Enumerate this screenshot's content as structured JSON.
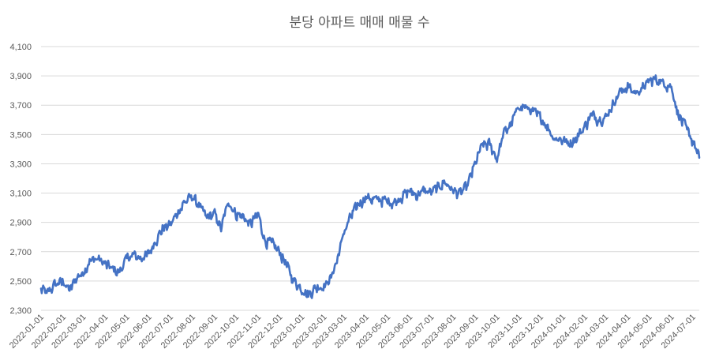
{
  "chart_data": {
    "type": "line",
    "title": "분당 아파트 매매 매물 수",
    "xlabel": "",
    "ylabel": "",
    "ylim": [
      2300,
      4100
    ],
    "yticks": [
      "2,300",
      "2,500",
      "2,700",
      "2,900",
      "3,100",
      "3,300",
      "3,500",
      "3,700",
      "3,900",
      "4,100"
    ],
    "ytick_values": [
      2300,
      2500,
      2700,
      2900,
      3100,
      3300,
      3500,
      3700,
      3900,
      4100
    ],
    "xticks": [
      "2022-01-01",
      "2022-02-01",
      "2022-03-01",
      "2022-04-01",
      "2022-05-01",
      "2022-06-01",
      "2022-07-01",
      "2022-08-01",
      "2022-09-01",
      "2022-10-01",
      "2022-11-01",
      "2022-12-01",
      "2023-01-01",
      "2023-02-01",
      "2023-03-01",
      "2023-04-01",
      "2023-05-01",
      "2023-06-01",
      "2023-07-01",
      "2023-08-01",
      "2023-09-01",
      "2023-10-01",
      "2023-11-01",
      "2023-12-01",
      "2024-01-01",
      "2024-02-01",
      "2024-03-01",
      "2024-04-01",
      "2024-05-01",
      "2024-06-01",
      "2024-07-01"
    ],
    "xrange": [
      "2022-01-01",
      "2024-07-10"
    ],
    "grid": true,
    "legend": "none",
    "color": "#4472c4",
    "series": [
      {
        "x": [
          "2022-01-01",
          "2022-01-10",
          "2022-01-20",
          "2022-02-01",
          "2022-02-10",
          "2022-02-20",
          "2022-03-01",
          "2022-03-10",
          "2022-03-20",
          "2022-04-01",
          "2022-04-10",
          "2022-04-20",
          "2022-05-01",
          "2022-05-10",
          "2022-05-20",
          "2022-06-01",
          "2022-06-10",
          "2022-06-20",
          "2022-07-01",
          "2022-07-10",
          "2022-07-20",
          "2022-08-01",
          "2022-08-10",
          "2022-08-20",
          "2022-09-01",
          "2022-09-10",
          "2022-09-20",
          "2022-10-01",
          "2022-10-10",
          "2022-10-20",
          "2022-11-01",
          "2022-11-10",
          "2022-11-20",
          "2022-12-01",
          "2022-12-10",
          "2022-12-20",
          "2023-01-01",
          "2023-01-10",
          "2023-01-20",
          "2023-02-01",
          "2023-02-10",
          "2023-02-20",
          "2023-03-01",
          "2023-03-10",
          "2023-03-20",
          "2023-04-01",
          "2023-04-10",
          "2023-04-20",
          "2023-05-01",
          "2023-05-10",
          "2023-05-20",
          "2023-06-01",
          "2023-06-10",
          "2023-06-20",
          "2023-07-01",
          "2023-07-10",
          "2023-07-20",
          "2023-08-01",
          "2023-08-10",
          "2023-08-20",
          "2023-09-01",
          "2023-09-10",
          "2023-09-20",
          "2023-10-01",
          "2023-10-10",
          "2023-10-20",
          "2023-11-01",
          "2023-11-10",
          "2023-11-20",
          "2023-12-01",
          "2023-12-10",
          "2023-12-20",
          "2024-01-01",
          "2024-01-10",
          "2024-01-20",
          "2024-02-01",
          "2024-02-10",
          "2024-02-20",
          "2024-03-01",
          "2024-03-10",
          "2024-03-20",
          "2024-04-01",
          "2024-04-10",
          "2024-04-20",
          "2024-05-01",
          "2024-05-10",
          "2024-05-20",
          "2024-06-01",
          "2024-06-10",
          "2024-06-20",
          "2024-07-01",
          "2024-07-10"
        ],
        "values": [
          2450,
          2420,
          2480,
          2500,
          2440,
          2530,
          2560,
          2640,
          2660,
          2620,
          2590,
          2560,
          2660,
          2680,
          2660,
          2690,
          2780,
          2860,
          2890,
          2960,
          3040,
          3080,
          3020,
          2940,
          2960,
          2860,
          3050,
          2960,
          2950,
          2890,
          2960,
          2780,
          2760,
          2700,
          2620,
          2510,
          2450,
          2410,
          2460,
          2470,
          2520,
          2660,
          2840,
          2940,
          3020,
          3080,
          3060,
          3060,
          3050,
          3040,
          3080,
          3120,
          3090,
          3120,
          3110,
          3140,
          3180,
          3120,
          3100,
          3150,
          3310,
          3430,
          3440,
          3340,
          3510,
          3570,
          3700,
          3690,
          3660,
          3620,
          3560,
          3480,
          3470,
          3440,
          3480,
          3560,
          3640,
          3610,
          3620,
          3700,
          3790,
          3830,
          3790,
          3810,
          3870,
          3880,
          3860,
          3830,
          3650,
          3560,
          3460,
          3340
        ]
      }
    ]
  }
}
